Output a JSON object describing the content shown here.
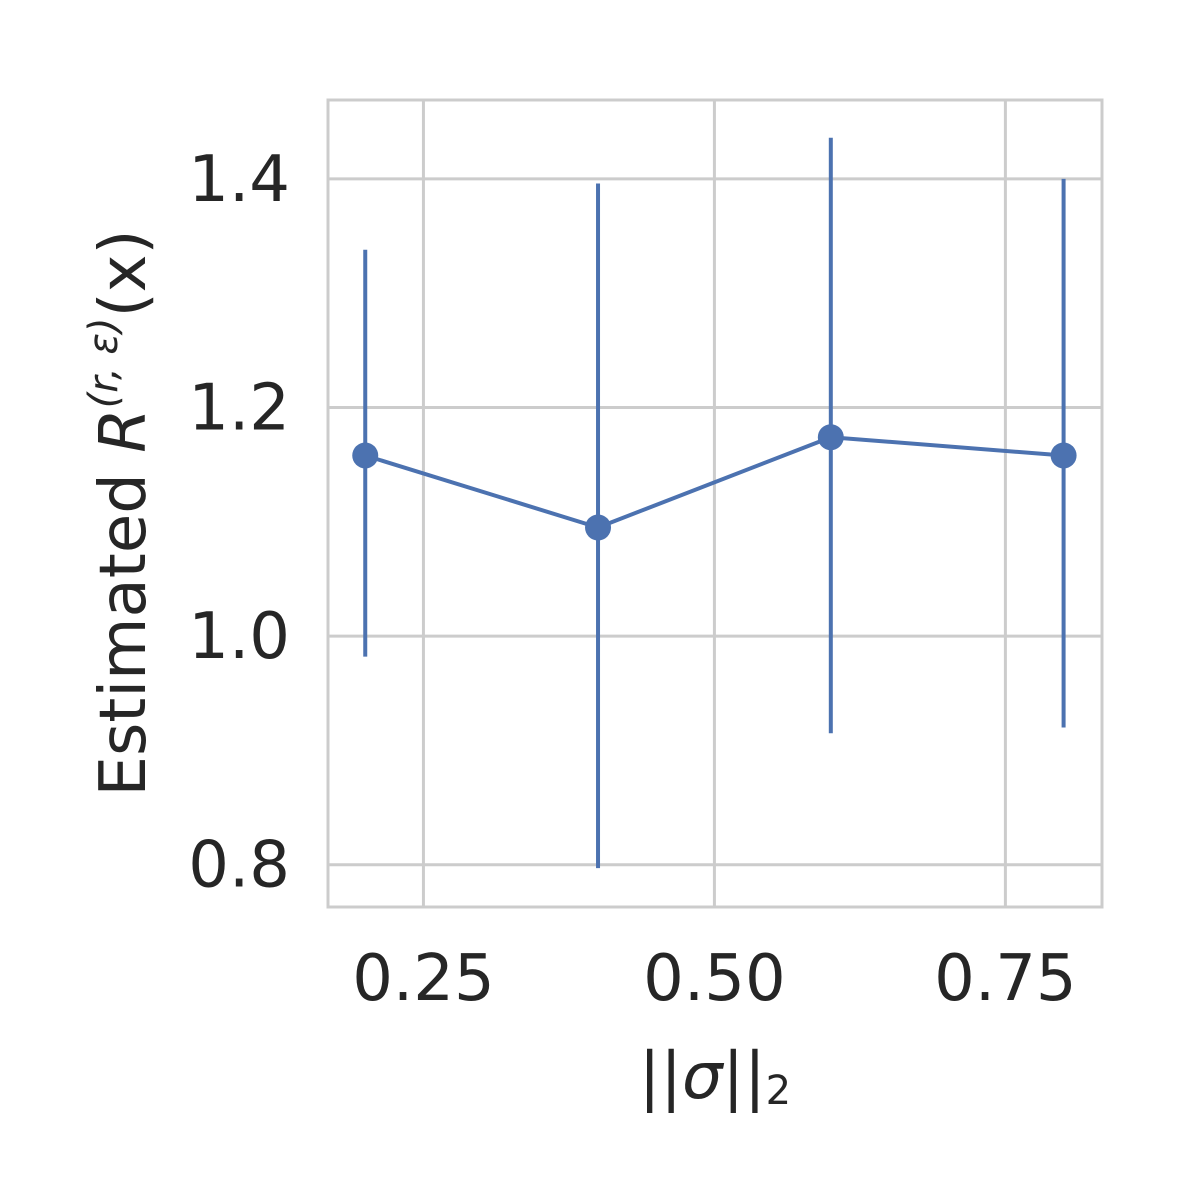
{
  "chart_data": {
    "type": "line",
    "xlabel": {
      "prefix": "||",
      "symbol": "σ",
      "suffix": "||",
      "subscript": "2"
    },
    "ylabel": {
      "prefix": "Estimated ",
      "symbol": "R",
      "superscript": "(r, ε)",
      "suffix": "(x)"
    },
    "xlim": [
      0.168,
      0.833
    ],
    "ylim": [
      0.763,
      1.469
    ],
    "xticks": [
      {
        "value": 0.25,
        "label": "0.25"
      },
      {
        "value": 0.5,
        "label": "0.50"
      },
      {
        "value": 0.75,
        "label": "0.75"
      }
    ],
    "yticks": [
      {
        "value": 0.8,
        "label": "0.8"
      },
      {
        "value": 1.0,
        "label": "1.0"
      },
      {
        "value": 1.2,
        "label": "1.2"
      },
      {
        "value": 1.4,
        "label": "1.4"
      }
    ],
    "grid": true,
    "series": [
      {
        "color": "#4c72b0",
        "marker": "circle",
        "x": [
          0.2,
          0.4,
          0.6,
          0.8
        ],
        "y": [
          1.158,
          1.095,
          1.174,
          1.158
        ],
        "err_low": [
          0.982,
          0.797,
          0.915,
          0.92
        ],
        "err_high": [
          1.338,
          1.396,
          1.436,
          1.4
        ]
      }
    ],
    "colors": {
      "grid": "#cccccc",
      "frame": "#cccccc",
      "text": "#262626"
    }
  }
}
